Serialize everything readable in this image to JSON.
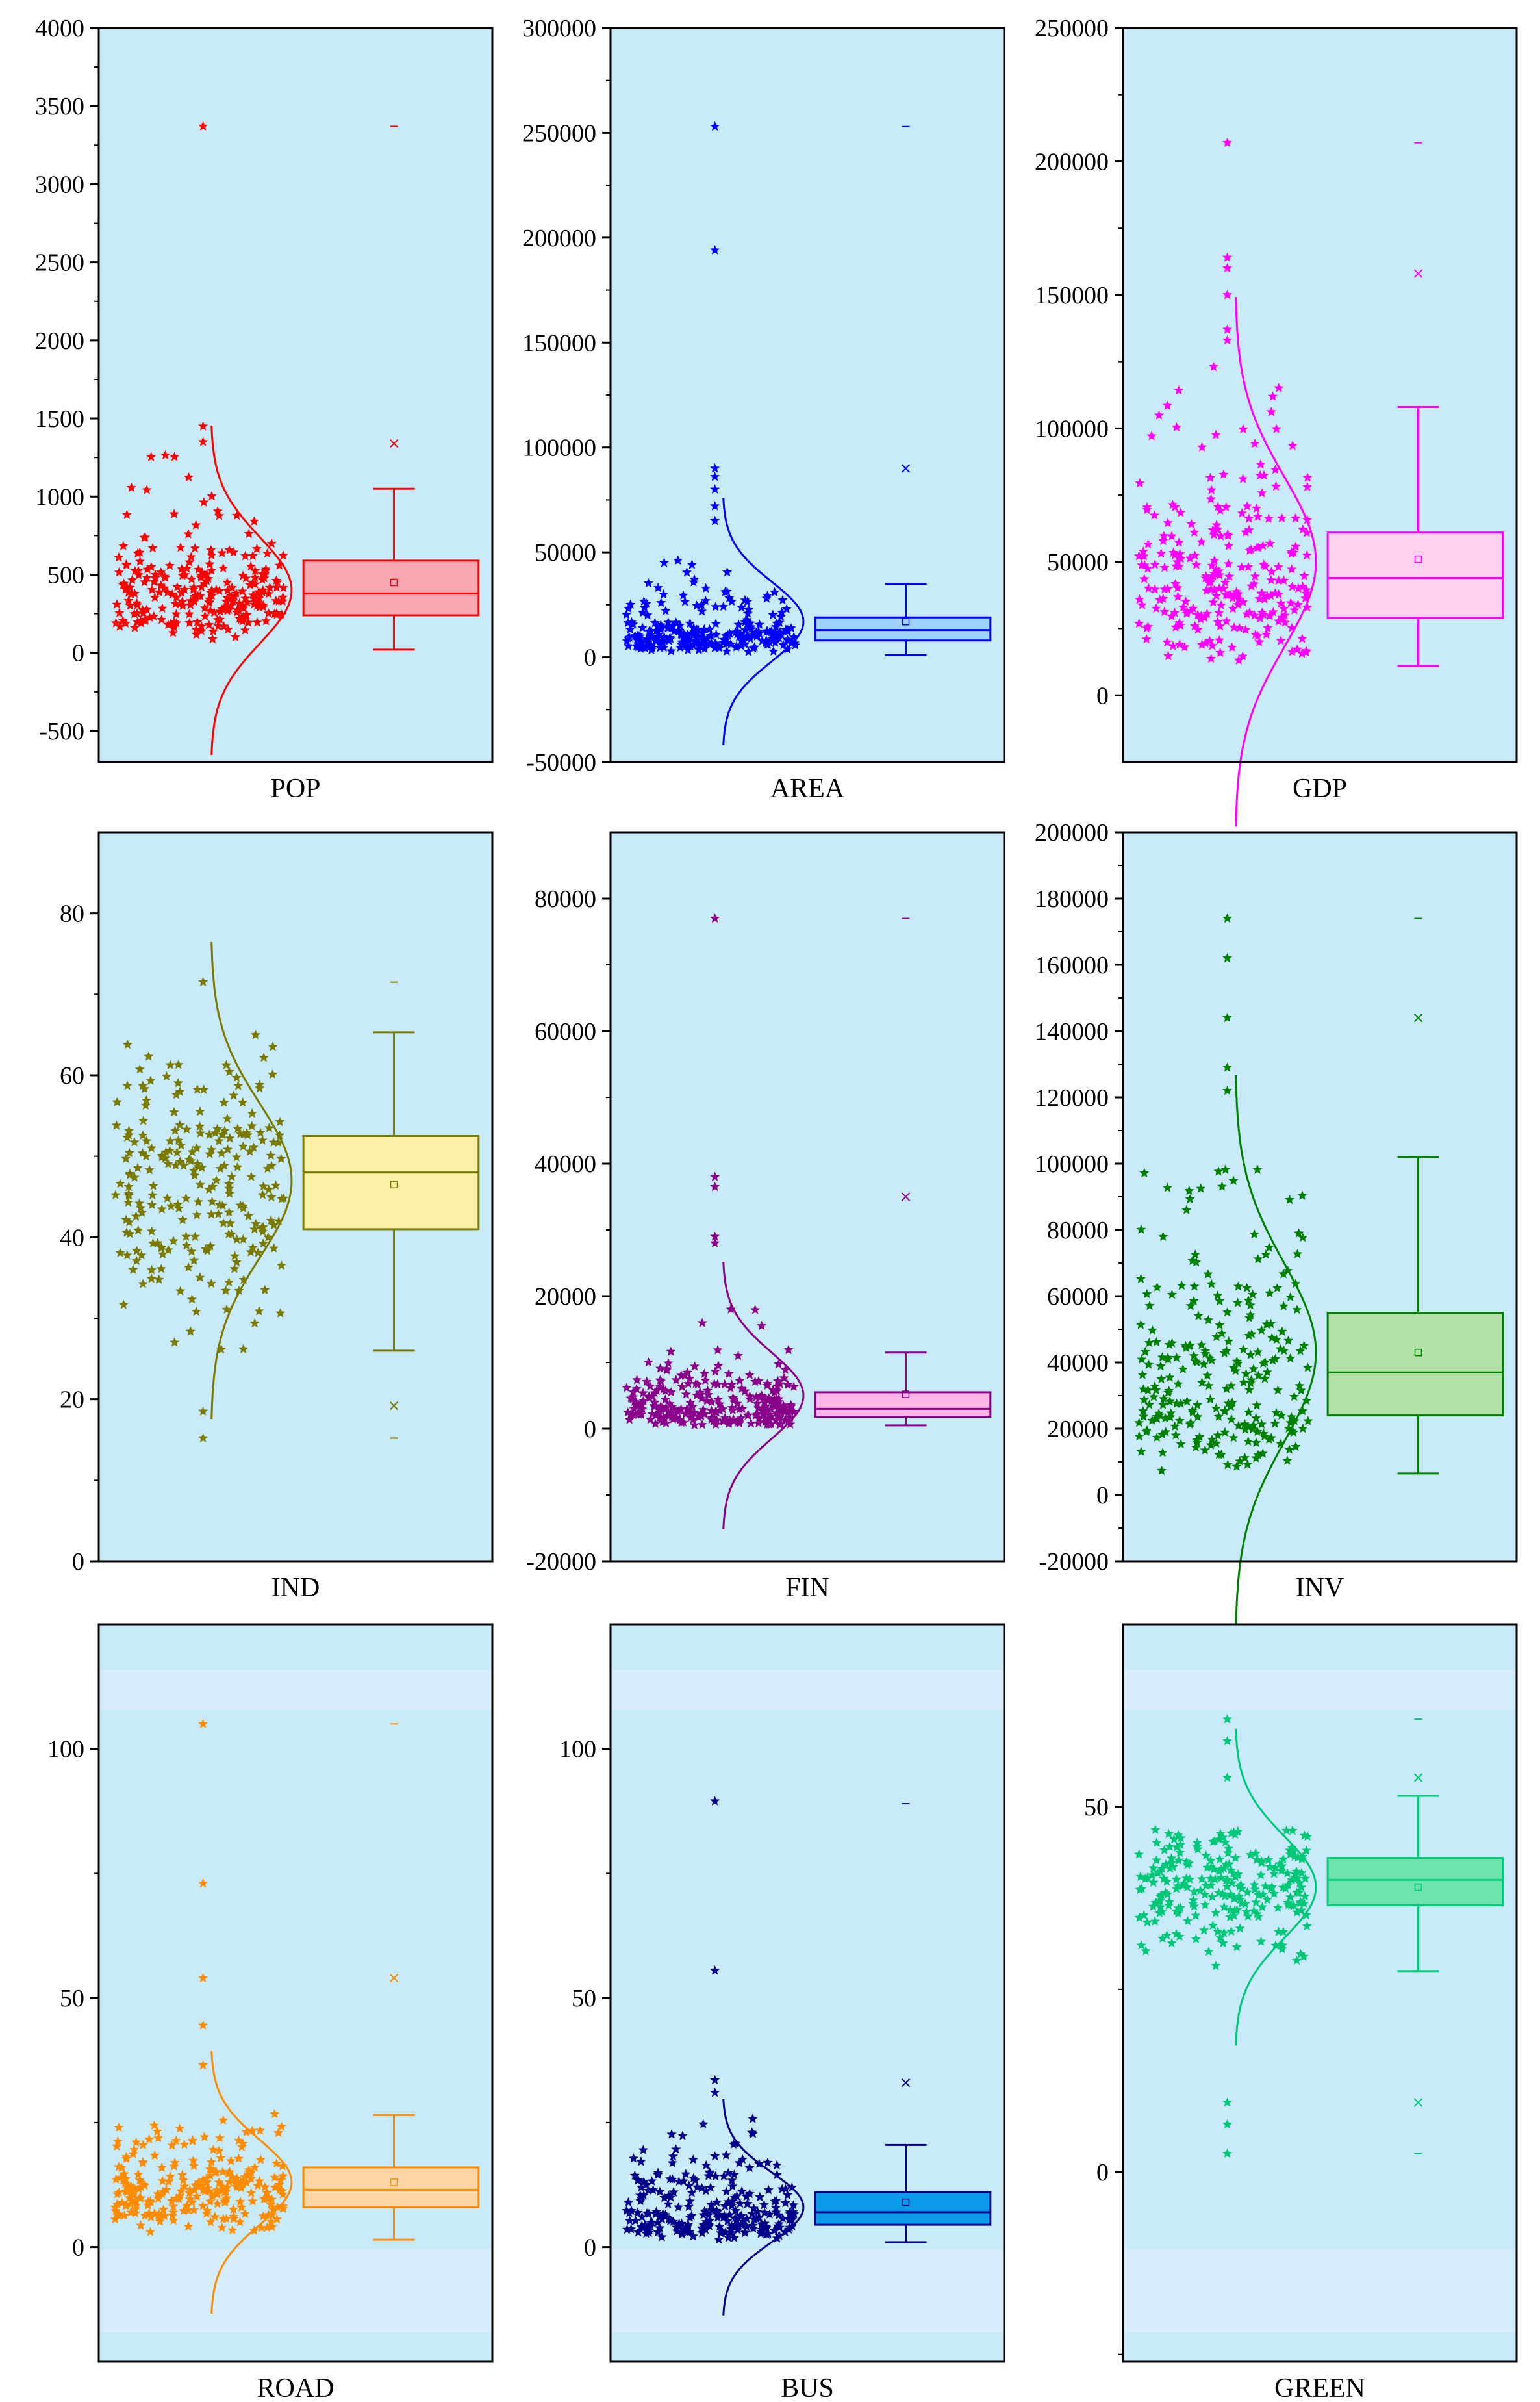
{
  "chart_data": [
    {
      "type": "half-violin-scatter-box",
      "title": "POP",
      "xlabel": "POP",
      "ylim": [
        -700,
        4000
      ],
      "yticks": [
        -500,
        0,
        500,
        1000,
        1500,
        2000,
        2500,
        3000,
        3500,
        4000
      ],
      "tick_labels": [
        "-500",
        "0",
        "500",
        "1000",
        "1500",
        "2000",
        "2500",
        "3000",
        "3500",
        "4000"
      ],
      "color": "#ff0000",
      "box_fill": "#f9a7b0",
      "box": {
        "whisker_low": 20,
        "q1": 240,
        "median": 380,
        "q3": 590,
        "whisker_high": 1050,
        "mean": 450
      },
      "outliers": [
        {
          "value": 1340,
          "marker": "x"
        },
        {
          "value": 3370,
          "marker": "-"
        }
      ],
      "curve": {
        "mean": 400,
        "sd": 340
      },
      "scatter_extremes": [
        3370,
        1450,
        1350
      ],
      "scatter": {
        "count": 250,
        "kind": "lognormal",
        "a": 5.85,
        "b": 0.5,
        "min": 30,
        "max": 1300
      }
    },
    {
      "type": "half-violin-scatter-box",
      "title": "AREA",
      "xlabel": "AREA",
      "ylim": [
        -50000,
        300000
      ],
      "yticks": [
        -50000,
        0,
        50000,
        100000,
        150000,
        200000,
        250000,
        300000
      ],
      "tick_labels": [
        "-50000",
        "0",
        "50000",
        "100000",
        "150000",
        "200000",
        "250000",
        "300000"
      ],
      "color": "#0000ff",
      "box_fill": "#9fd3ff",
      "box": {
        "whisker_low": 1000,
        "q1": 8000,
        "median": 13000,
        "q3": 19000,
        "whisker_high": 35000,
        "mean": 17000
      },
      "outliers": [
        {
          "value": 90000,
          "marker": "x"
        },
        {
          "value": 253000,
          "marker": "-"
        }
      ],
      "curve": {
        "mean": 17000,
        "sd": 19000
      },
      "scatter_extremes": [
        253000,
        194000,
        90000,
        86000,
        80000,
        72000,
        65000
      ],
      "scatter": {
        "count": 250,
        "kind": "lognormal",
        "a": 9.35,
        "b": 0.65,
        "min": 1000,
        "max": 50000
      }
    },
    {
      "type": "half-violin-scatter-box",
      "title": "GDP",
      "xlabel": "GDP",
      "ylim": [
        -25000,
        250000
      ],
      "yticks": [
        0,
        50000,
        100000,
        150000,
        200000,
        250000
      ],
      "tick_labels": [
        "0",
        "50000",
        "100000",
        "150000",
        "200000",
        "250000"
      ],
      "color": "#ff00ff",
      "box_fill": "#ffd1ef",
      "box": {
        "whisker_low": 11000,
        "q1": 29000,
        "median": 44000,
        "q3": 61000,
        "whisker_high": 108000,
        "mean": 51000
      },
      "outliers": [
        {
          "value": 158000,
          "marker": "x"
        },
        {
          "value": 207000,
          "marker": "-"
        }
      ],
      "curve": {
        "mean": 50000,
        "sd": 32000
      },
      "scatter_extremes": [
        207000,
        164000,
        160000,
        150000,
        137000,
        133000
      ],
      "scatter": {
        "count": 250,
        "kind": "lognormal",
        "a": 10.65,
        "b": 0.5,
        "min": 12000,
        "max": 125000
      }
    },
    {
      "type": "half-violin-scatter-box",
      "title": "IND",
      "xlabel": "IND",
      "ylim": [
        0,
        90
      ],
      "yticks": [
        0,
        20,
        40,
        60,
        80
      ],
      "tick_labels": [
        "0",
        "20",
        "40",
        "60",
        "80"
      ],
      "color": "#7a7a00",
      "box_fill": "#fbf1a6",
      "box": {
        "whisker_low": 26,
        "q1": 41,
        "median": 48,
        "q3": 52.5,
        "whisker_high": 65.3,
        "mean": 46.5
      },
      "outliers": [
        {
          "value": 19.2,
          "marker": "x"
        },
        {
          "value": 15.2,
          "marker": "-"
        },
        {
          "value": 71.5,
          "marker": "-"
        }
      ],
      "curve": {
        "mean": 47,
        "sd": 9.5
      },
      "scatter_extremes": [
        71.5,
        15.2,
        18.5
      ],
      "scatter": {
        "count": 240,
        "kind": "normal",
        "a": 47,
        "b": 9,
        "min": 20,
        "max": 65
      }
    },
    {
      "type": "half-violin-scatter-box",
      "title": "FIN",
      "xlabel": "FIN",
      "ylim": [
        -20000,
        90000
      ],
      "yticks": [
        -20000,
        0,
        20000,
        40000,
        60000,
        80000
      ],
      "tick_labels": [
        "-20000",
        "0",
        "20000",
        "40000",
        "60000",
        "80000"
      ],
      "color": "#8b008b",
      "box_fill": "#ffb6e6",
      "box": {
        "whisker_low": 500,
        "q1": 1800,
        "median": 3000,
        "q3": 5500,
        "whisker_high": 11500,
        "mean": 5200
      },
      "outliers": [
        {
          "value": 35000,
          "marker": "x"
        },
        {
          "value": 77000,
          "marker": "-"
        }
      ],
      "curve": {
        "mean": 5000,
        "sd": 6500
      },
      "scatter_extremes": [
        77000,
        38000,
        36500,
        29000,
        28000
      ],
      "scatter": {
        "count": 250,
        "kind": "lognormal",
        "a": 8.05,
        "b": 0.75,
        "min": 500,
        "max": 19000
      }
    },
    {
      "type": "half-violin-scatter-box",
      "title": "INV",
      "xlabel": "INV",
      "ylim": [
        -20000,
        200000
      ],
      "yticks": [
        -20000,
        0,
        20000,
        40000,
        60000,
        80000,
        100000,
        120000,
        140000,
        160000,
        180000,
        200000
      ],
      "tick_labels": [
        "-20000",
        "0",
        "20000",
        "40000",
        "60000",
        "80000",
        "100000",
        "120000",
        "140000",
        "160000",
        "180000",
        "200000"
      ],
      "color": "#008000",
      "box_fill": "#b3e0a7",
      "box": {
        "whisker_low": 6500,
        "q1": 24000,
        "median": 37000,
        "q3": 55000,
        "whisker_high": 102000,
        "mean": 43000
      },
      "outliers": [
        {
          "value": 144000,
          "marker": "x"
        },
        {
          "value": 174000,
          "marker": "-"
        }
      ],
      "curve": {
        "mean": 43000,
        "sd": 27000
      },
      "scatter_extremes": [
        174000,
        162000,
        144000,
        129000,
        122000
      ],
      "scatter": {
        "count": 250,
        "kind": "lognormal",
        "a": 10.45,
        "b": 0.6,
        "min": 7000,
        "max": 102000
      }
    },
    {
      "type": "half-violin-scatter-box",
      "title": "ROAD",
      "xlabel": "ROAD",
      "ylim": [
        -23,
        125
      ],
      "yticks": [
        0,
        50,
        100
      ],
      "tick_labels": [
        "0",
        "50",
        "100"
      ],
      "color": "#ff8c00",
      "box_fill": "#ffd6a6",
      "box": {
        "whisker_low": 1.5,
        "q1": 8,
        "median": 11.5,
        "q3": 16,
        "whisker_high": 26.5,
        "mean": 13
      },
      "outliers": [
        {
          "value": 54,
          "marker": "x"
        },
        {
          "value": 105,
          "marker": "-"
        }
      ],
      "curve": {
        "mean": 13,
        "sd": 8.5
      },
      "scatter_extremes": [
        105,
        73,
        54,
        44.5,
        36.5
      ],
      "scatter": {
        "count": 250,
        "kind": "lognormal",
        "a": 2.45,
        "b": 0.45,
        "min": 1.5,
        "max": 28
      }
    },
    {
      "type": "half-violin-scatter-box",
      "title": "BUS",
      "xlabel": "BUS",
      "ylim": [
        -23,
        125
      ],
      "yticks": [
        0,
        50,
        100
      ],
      "tick_labels": [
        "0",
        "50",
        "100"
      ],
      "color": "#00008b",
      "box_fill": "#0a9ce8",
      "box": {
        "whisker_low": 1,
        "q1": 4.5,
        "median": 7,
        "q3": 11,
        "whisker_high": 20.5,
        "mean": 9
      },
      "outliers": [
        {
          "value": 33,
          "marker": "x"
        },
        {
          "value": 89,
          "marker": "-"
        }
      ],
      "curve": {
        "mean": 8,
        "sd": 7
      },
      "scatter_extremes": [
        89.5,
        55.5,
        33.5,
        31
      ],
      "scatter": {
        "count": 250,
        "kind": "lognormal",
        "a": 1.95,
        "b": 0.65,
        "min": 1,
        "max": 26
      }
    },
    {
      "type": "half-violin-scatter-box",
      "title": "GREEN",
      "xlabel": "GREEN",
      "ylim": [
        -26,
        75
      ],
      "yticks": [
        0,
        50
      ],
      "tick_labels": [
        "0",
        "50"
      ],
      "color": "#00c878",
      "box_fill": "#6fe3ad",
      "box": {
        "whisker_low": 27.5,
        "q1": 36.5,
        "median": 40,
        "q3": 43,
        "whisker_high": 51.5,
        "mean": 39
      },
      "outliers": [
        {
          "value": 9.5,
          "marker": "x"
        },
        {
          "value": 54,
          "marker": "x"
        },
        {
          "value": 2.5,
          "marker": "-"
        },
        {
          "value": 62,
          "marker": "-"
        }
      ],
      "curve": {
        "mean": 39,
        "sd": 7
      },
      "scatter_extremes": [
        62,
        59,
        54,
        9.5,
        6.5,
        2.5
      ],
      "scatter": {
        "count": 240,
        "kind": "normal",
        "a": 40,
        "b": 5,
        "min": 18,
        "max": 47
      }
    }
  ]
}
